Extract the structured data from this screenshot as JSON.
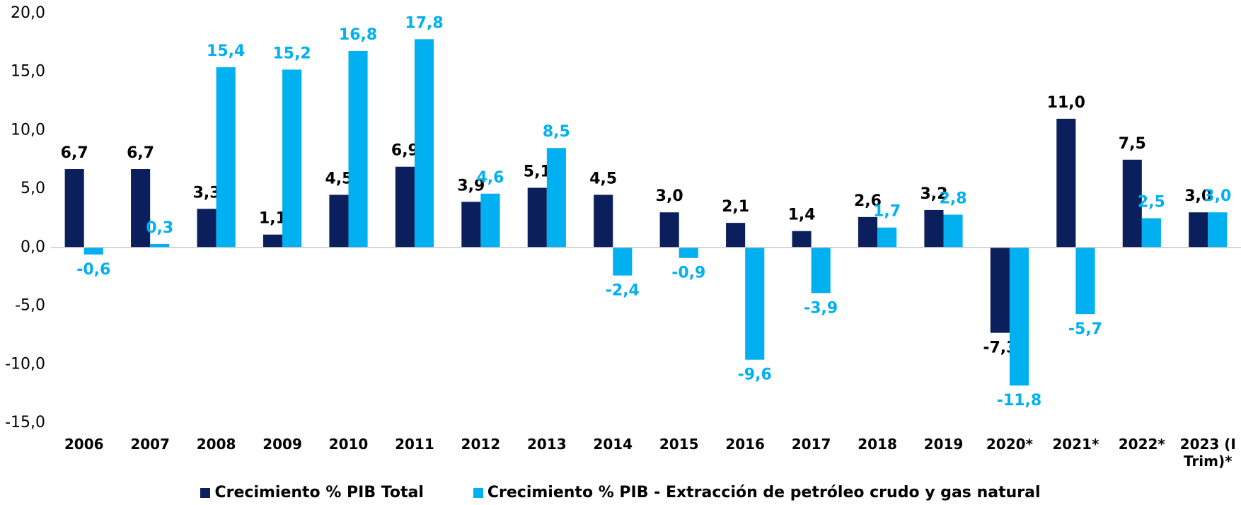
{
  "chart_data": {
    "type": "bar",
    "categories": [
      "2006",
      "2007",
      "2008",
      "2009",
      "2010",
      "2011",
      "2012",
      "2013",
      "2014",
      "2015",
      "2016",
      "2017",
      "2018",
      "2019",
      "2020*",
      "2021*",
      "2022*",
      "2023 (I Trim)*"
    ],
    "series": [
      {
        "name": "Crecimiento % PIB Total",
        "color": "#0b1f5c",
        "values": [
          6.7,
          6.7,
          3.3,
          1.1,
          4.5,
          6.9,
          3.9,
          5.1,
          4.5,
          3.0,
          2.1,
          1.4,
          2.6,
          3.2,
          -7.3,
          11.0,
          7.5,
          3.0
        ],
        "value_labels": [
          "6,7",
          "6,7",
          "3,3",
          "1,1",
          "4,5",
          "6,9",
          "3,9",
          "5,1",
          "4,5",
          "3,0",
          "2,1",
          "1,4",
          "2,6",
          "3,2",
          "-7,3",
          "11,0",
          "7,5",
          "3,0"
        ],
        "label_color": "#000000"
      },
      {
        "name": "Crecimiento % PIB - Extracción de petróleo crudo y gas natural",
        "color": "#00b0f0",
        "values": [
          -0.6,
          0.3,
          15.4,
          15.2,
          16.8,
          17.8,
          4.6,
          8.5,
          -2.4,
          -0.9,
          -9.6,
          -3.9,
          1.7,
          2.8,
          -11.8,
          -5.7,
          2.5,
          3.0
        ],
        "value_labels": [
          "-0,6",
          "0,3",
          "15,4",
          "15,2",
          "16,8",
          "17,8",
          "4,6",
          "8,5",
          "-2,4",
          "-0,9",
          "-9,6",
          "-3,9",
          "1,7",
          "2,8",
          "-11,8",
          "-5,7",
          "2,5",
          "3,0"
        ],
        "label_color": "#00b0f0"
      }
    ],
    "ylim": [
      -15,
      20
    ],
    "yticks": [
      {
        "value": -15,
        "label": "-15,0"
      },
      {
        "value": -10,
        "label": "-10,0"
      },
      {
        "value": -5,
        "label": "-5,0"
      },
      {
        "value": 0,
        "label": "0,0"
      },
      {
        "value": 5,
        "label": "5,0"
      },
      {
        "value": 10,
        "label": "10,0"
      },
      {
        "value": 15,
        "label": "15,0"
      },
      {
        "value": 20,
        "label": "20,0"
      }
    ],
    "grid": false,
    "legend": "bottom"
  }
}
